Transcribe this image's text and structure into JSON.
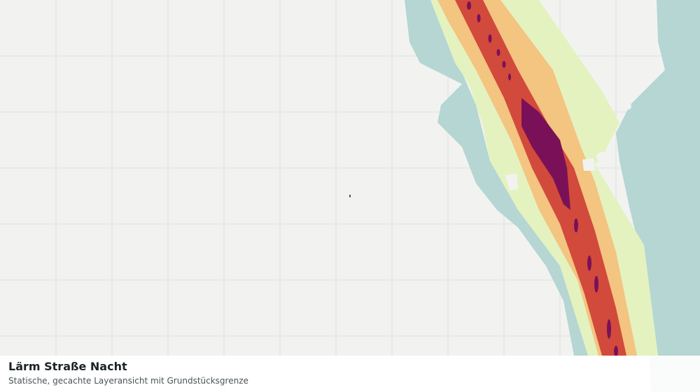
{
  "header": {
    "title": "Lärm Straße Nacht",
    "subtitle": "Statische, gecachte Layeransicht mit Grundstücksgrenze"
  }
}
